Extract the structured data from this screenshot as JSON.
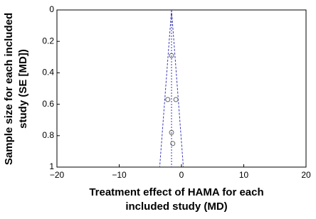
{
  "chart_data": {
    "type": "scatter",
    "x_label": [
      "Treatment effect of HAMA for each",
      "included study (MD)"
    ],
    "y_label": [
      "Sample size for each included",
      "study (SE [MD])"
    ],
    "x": [
      -1.6,
      -2.2,
      -0.9,
      -1.6,
      -1.4
    ],
    "values": [
      0.29,
      0.57,
      0.57,
      0.78,
      0.85
    ],
    "color": "#666666",
    "xlim": [
      -20,
      20
    ],
    "xticks": [
      {
        "value": -20,
        "label": "−20"
      },
      {
        "value": -10,
        "label": "−10"
      },
      0,
      10,
      20
    ],
    "ylim": [
      0,
      1
    ],
    "yticks": [
      0,
      0.2,
      0.4,
      0.6,
      0.8,
      1
    ],
    "y_inverted": true,
    "funnel": {
      "center": -1.6,
      "lower": -3.5,
      "upper": 0.3,
      "color": "#3a3ab8"
    }
  }
}
